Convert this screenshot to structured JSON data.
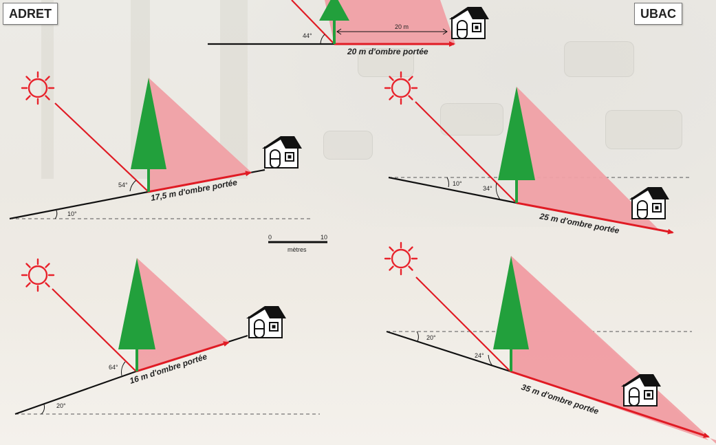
{
  "labels": {
    "left": "ADRET",
    "right": "UBAC"
  },
  "scale": {
    "start": "0",
    "end": "10",
    "unit": "mètres"
  },
  "top_scene": {
    "angle": "44°",
    "distance": "20 m",
    "shadow": "20 m d'ombre portée"
  },
  "adret": [
    {
      "sun_angle": "54°",
      "slope": "10°",
      "shadow": "17,5 m d'ombre portée"
    },
    {
      "sun_angle": "64°",
      "slope": "20°",
      "shadow": "16 m d'ombre portée"
    }
  ],
  "ubac": [
    {
      "slope": "10°",
      "sun_angle": "34°",
      "shadow": "25 m d'ombre portée"
    },
    {
      "slope": "20°",
      "sun_angle": "24°",
      "shadow": "35 m d'ombre portée"
    }
  ],
  "colors": {
    "sun": "#e8222b",
    "shadow": "#f0a0a5",
    "tree": "#22a03c",
    "arrow": "#e01b24"
  },
  "icons": [
    "sun-icon",
    "tree-icon",
    "house-icon"
  ]
}
